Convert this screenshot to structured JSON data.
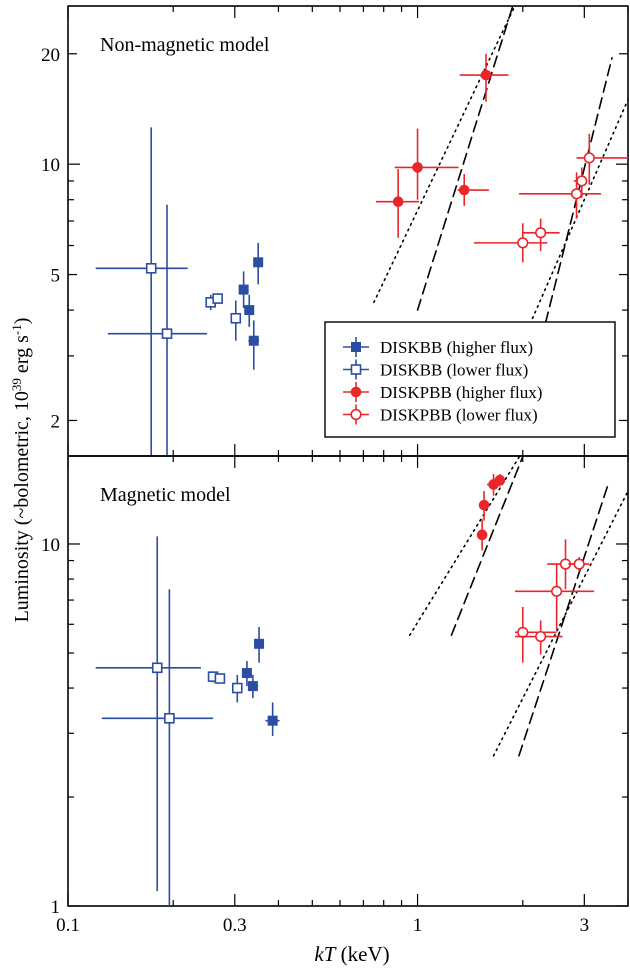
{
  "ylabel_text": "Luminosity (~bolometric, 10",
  "ylabel_exp1": "39",
  "ylabel_mid": " erg s",
  "ylabel_exp2": "-1",
  "ylabel_end": ")",
  "xlabel_italic": "kT",
  "xlabel_rest": " (keV)",
  "colors": {
    "diskbb": "#2b4ea2",
    "diskpbb": "#e8262b"
  },
  "chart_data": [
    {
      "type": "scatter",
      "title": "Non-magnetic model",
      "xscale": "log",
      "yscale": "log",
      "xlim": [
        0.1,
        4.0
      ],
      "ylim": [
        1.6,
        27
      ],
      "yticks": [
        2,
        5,
        10,
        20
      ],
      "legend": {
        "placement": "lower-right",
        "entries": [
          "DISKBB (higher flux)",
          "DISKBB (lower flux)",
          "DISKPBB (higher flux)",
          "DISKPBB (lower flux)"
        ]
      },
      "series": [
        {
          "name": "DISKBB (higher flux)",
          "marker": "filled-square",
          "color": "#2b4ea2",
          "points": [
            {
              "x": 0.318,
              "y": 4.55,
              "xerr": [
                0.008,
                0.008
              ],
              "yerr": [
                0.5,
                0.55
              ]
            },
            {
              "x": 0.33,
              "y": 4.0,
              "xerr": [
                0.008,
                0.008
              ],
              "yerr": [
                0.4,
                0.4
              ]
            },
            {
              "x": 0.34,
              "y": 3.3,
              "xerr": [
                0.012,
                0.012
              ],
              "yerr": [
                0.55,
                0.45
              ]
            },
            {
              "x": 0.35,
              "y": 5.4,
              "xerr": [
                0.008,
                0.008
              ],
              "yerr": [
                0.7,
                0.7
              ]
            }
          ]
        },
        {
          "name": "DISKBB (lower flux)",
          "marker": "open-square",
          "color": "#2b4ea2",
          "points": [
            {
              "x": 0.173,
              "y": 5.2,
              "xerr": [
                0.053,
                0.047
              ],
              "yerr": [
                3.6,
                7.4
              ]
            },
            {
              "x": 0.192,
              "y": 3.45,
              "xerr": [
                0.062,
                0.058
              ],
              "yerr": [
                1.9,
                4.3
              ]
            },
            {
              "x": 0.256,
              "y": 4.2,
              "xerr": [
                0.006,
                0.006
              ],
              "yerr": [
                0.2,
                0.2
              ]
            },
            {
              "x": 0.268,
              "y": 4.3,
              "xerr": [
                0.007,
                0.007
              ],
              "yerr": [
                0.1,
                0.1
              ]
            },
            {
              "x": 0.302,
              "y": 3.8,
              "xerr": [
                0.006,
                0.006
              ],
              "yerr": [
                0.5,
                0.45
              ]
            }
          ]
        },
        {
          "name": "DISKPBB (higher flux)",
          "marker": "filled-circle",
          "color": "#e8262b",
          "points": [
            {
              "x": 0.88,
              "y": 7.9,
              "xerr": [
                0.12,
                0.13
              ],
              "yerr": [
                1.6,
                1.8
              ]
            },
            {
              "x": 1.0,
              "y": 9.8,
              "xerr": [
                0.14,
                0.31
              ],
              "yerr": [
                1.8,
                2.7
              ]
            },
            {
              "x": 1.36,
              "y": 8.5,
              "xerr": [
                0.06,
                0.24
              ],
              "yerr": [
                0.8,
                0.9
              ]
            },
            {
              "x": 1.57,
              "y": 17.5,
              "xerr": [
                0.25,
                0.25
              ],
              "yerr": [
                2.7,
                2.5
              ]
            }
          ]
        },
        {
          "name": "DISKPBB (lower flux)",
          "marker": "open-circle",
          "color": "#e8262b",
          "points": [
            {
              "x": 2.0,
              "y": 6.1,
              "xerr": [
                0.55,
                0.35
              ],
              "yerr": [
                0.7,
                0.8
              ]
            },
            {
              "x": 2.25,
              "y": 6.5,
              "xerr": [
                0.25,
                0.3
              ],
              "yerr": [
                0.7,
                0.6
              ]
            },
            {
              "x": 2.85,
              "y": 8.3,
              "xerr": [
                0.9,
                0.5
              ],
              "yerr": [
                1.2,
                1.2
              ]
            },
            {
              "x": 2.95,
              "y": 9.0,
              "xerr": [
                0.15,
                0.1
              ],
              "yerr": [
                0.9,
                0.8
              ]
            },
            {
              "x": 3.1,
              "y": 10.4,
              "xerr": [
                0.25,
                0.9
              ],
              "yerr": [
                1.6,
                1.7
              ]
            }
          ]
        }
      ],
      "reference_lines": [
        {
          "style": "dashed",
          "x": [
            1.0,
            2.0
          ],
          "y": [
            4.0,
            33
          ]
        },
        {
          "style": "dotted",
          "x": [
            0.75,
            2.0
          ],
          "y": [
            4.2,
            30
          ]
        },
        {
          "style": "dashed",
          "x": [
            2.2,
            3.6
          ],
          "y": [
            3.0,
            19.5
          ]
        },
        {
          "style": "dotted",
          "x": [
            2.0,
            4.0
          ],
          "y": [
            3.3,
            15
          ]
        }
      ]
    },
    {
      "type": "scatter",
      "title": "Magnetic model",
      "xscale": "log",
      "yscale": "log",
      "xlim": [
        0.1,
        4.0
      ],
      "ylim": [
        1.0,
        17.5
      ],
      "yticks": [
        1,
        10
      ],
      "xticks": [
        0.1,
        0.3,
        1,
        3
      ],
      "xlabel": "kT (keV)",
      "series": [
        {
          "name": "DISKBB (higher flux)",
          "marker": "filled-square",
          "color": "#2b4ea2",
          "points": [
            {
              "x": 0.325,
              "y": 4.4,
              "xerr": [
                0.01,
                0.01
              ],
              "yerr": [
                0.35,
                0.35
              ]
            },
            {
              "x": 0.338,
              "y": 4.05,
              "xerr": [
                0.01,
                0.012
              ],
              "yerr": [
                0.3,
                0.3
              ]
            },
            {
              "x": 0.352,
              "y": 5.3,
              "xerr": [
                0.008,
                0.008
              ],
              "yerr": [
                0.6,
                0.6
              ]
            },
            {
              "x": 0.385,
              "y": 3.25,
              "xerr": [
                0.018,
                0.018
              ],
              "yerr": [
                0.3,
                0.4
              ]
            }
          ]
        },
        {
          "name": "DISKBB (lower flux)",
          "marker": "open-square",
          "color": "#2b4ea2",
          "points": [
            {
              "x": 0.18,
              "y": 4.55,
              "xerr": [
                0.06,
                0.06
              ],
              "yerr": [
                3.45,
                5.95
              ]
            },
            {
              "x": 0.195,
              "y": 3.3,
              "xerr": [
                0.07,
                0.065
              ],
              "yerr": [
                2.3,
                4.2
              ]
            },
            {
              "x": 0.26,
              "y": 4.3,
              "xerr": [
                0.006,
                0.006
              ],
              "yerr": [
                0.15,
                0.15
              ]
            },
            {
              "x": 0.272,
              "y": 4.25,
              "xerr": [
                0.007,
                0.007
              ],
              "yerr": [
                0.1,
                0.1
              ]
            },
            {
              "x": 0.305,
              "y": 4.0,
              "xerr": [
                0.01,
                0.01
              ],
              "yerr": [
                0.35,
                0.35
              ]
            }
          ]
        },
        {
          "name": "DISKPBB (higher flux)",
          "marker": "filled-circle",
          "color": "#e8262b",
          "points": [
            {
              "x": 1.53,
              "y": 10.6,
              "xerr": [
                0.05,
                0.05
              ],
              "yerr": [
                1.0,
                1.1
              ]
            },
            {
              "x": 1.55,
              "y": 12.8,
              "xerr": [
                0.05,
                0.05
              ],
              "yerr": [
                1.2,
                1.2
              ]
            },
            {
              "x": 1.65,
              "y": 14.6,
              "xerr": [
                0.07,
                0.07
              ],
              "yerr": [
                1.0,
                1.0
              ]
            },
            {
              "x": 1.72,
              "y": 15.0,
              "xerr": [
                0.06,
                0.06
              ],
              "yerr": [
                0.6,
                0.6
              ]
            }
          ]
        },
        {
          "name": "DISKPBB (lower flux)",
          "marker": "open-circle",
          "color": "#e8262b",
          "points": [
            {
              "x": 2.0,
              "y": 5.7,
              "xerr": [
                0.1,
                0.5
              ],
              "yerr": [
                1.0,
                1.0
              ]
            },
            {
              "x": 2.25,
              "y": 5.55,
              "xerr": [
                0.35,
                0.35
              ],
              "yerr": [
                0.6,
                0.6
              ]
            },
            {
              "x": 2.5,
              "y": 7.4,
              "xerr": [
                0.6,
                0.7
              ],
              "yerr": [
                1.6,
                1.4
              ]
            },
            {
              "x": 2.65,
              "y": 8.8,
              "xerr": [
                0.3,
                0.35
              ],
              "yerr": [
                1.3,
                1.5
              ]
            },
            {
              "x": 2.9,
              "y": 8.8,
              "xerr": [
                0.2,
                0.2
              ],
              "yerr": [
                0.4,
                0.4
              ]
            }
          ]
        }
      ],
      "reference_lines": [
        {
          "style": "dashed",
          "x": [
            1.25,
            2.05
          ],
          "y": [
            5.6,
            18.5
          ]
        },
        {
          "style": "dotted",
          "x": [
            0.95,
            2.1
          ],
          "y": [
            5.6,
            19.5
          ]
        },
        {
          "style": "dashed",
          "x": [
            1.95,
            3.5
          ],
          "y": [
            2.6,
            14.5
          ]
        },
        {
          "style": "dotted",
          "x": [
            1.65,
            4.0
          ],
          "y": [
            2.6,
            14.0
          ]
        }
      ]
    }
  ]
}
